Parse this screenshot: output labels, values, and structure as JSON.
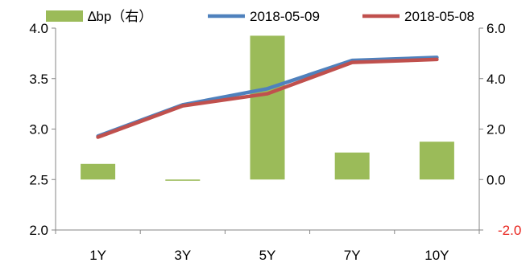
{
  "chart_data": {
    "type": "bar",
    "categories": [
      "1Y",
      "3Y",
      "5Y",
      "7Y",
      "10Y"
    ],
    "left_axis": {
      "ylim": [
        2.0,
        4.0
      ],
      "ticks": [
        "2.0",
        "2.5",
        "3.0",
        "3.5",
        "4.0"
      ]
    },
    "right_axis": {
      "ylim": [
        -2.0,
        6.0
      ],
      "ticks": [
        "-2.0",
        "0.0",
        "2.0",
        "4.0",
        "6.0"
      ]
    },
    "series": [
      {
        "name": "∆bp（右）",
        "kind": "bar",
        "axis": "right",
        "color": "#9bbb59",
        "values": [
          0.62,
          -0.05,
          5.7,
          1.07,
          1.5
        ]
      },
      {
        "name": "2018-05-09",
        "kind": "line",
        "axis": "left",
        "color": "#4f81bd",
        "values": [
          2.93,
          3.24,
          3.4,
          3.68,
          3.71
        ]
      },
      {
        "name": "2018-05-08",
        "kind": "line",
        "axis": "left",
        "color": "#c0504d",
        "values": [
          2.92,
          3.23,
          3.35,
          3.66,
          3.69
        ]
      }
    ],
    "legend": "top",
    "grid": false
  }
}
